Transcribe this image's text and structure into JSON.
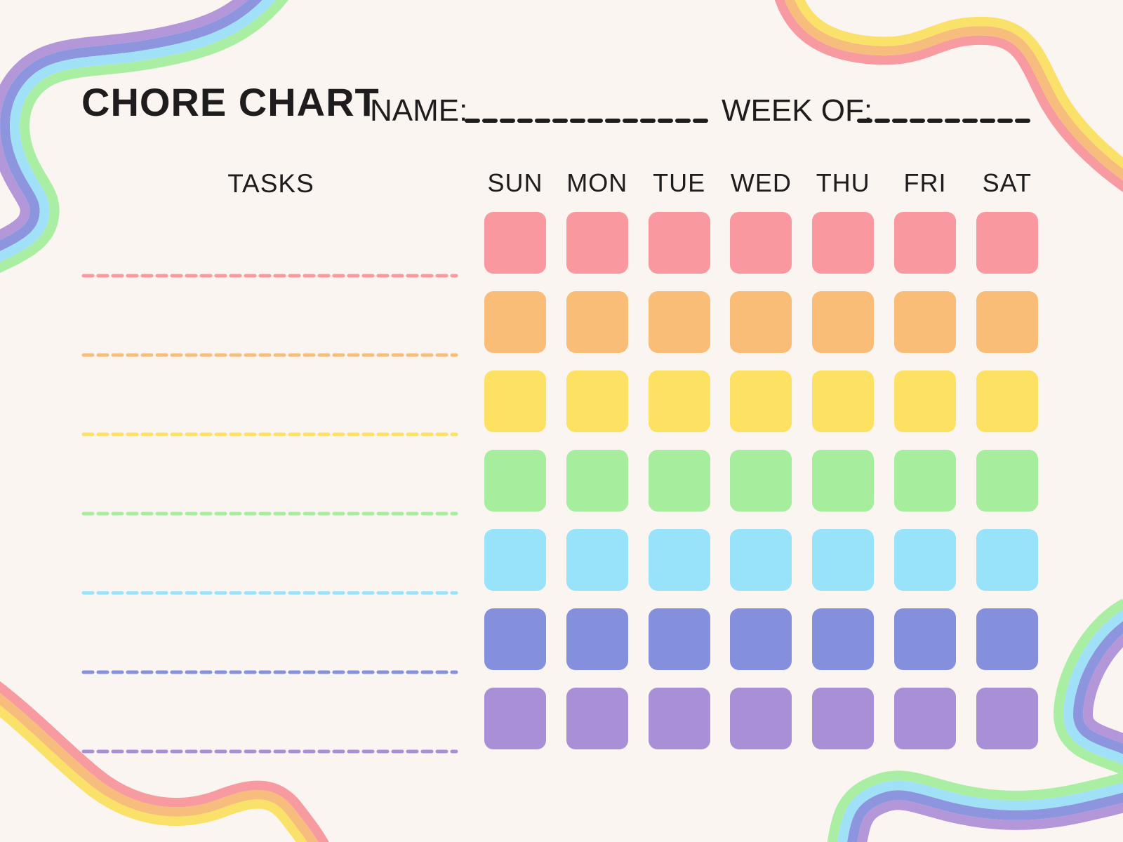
{
  "page": {
    "title": "CHORE CHART",
    "background_color": "#FBF5F2",
    "text_color": "#1E1C1C"
  },
  "header": {
    "name_label": "NAME:",
    "name_value": "",
    "week_label": "WEEK OF:",
    "week_value": ""
  },
  "table": {
    "tasks_header": "TASKS",
    "days": [
      "SUN",
      "MON",
      "TUE",
      "WED",
      "THU",
      "FRI",
      "SAT"
    ],
    "rows": [
      {
        "task": "",
        "color": "#F9989F"
      },
      {
        "task": "",
        "color": "#F9BD78"
      },
      {
        "task": "",
        "color": "#FDE163"
      },
      {
        "task": "",
        "color": "#A6EE9E"
      },
      {
        "task": "",
        "color": "#98E3FA"
      },
      {
        "task": "",
        "color": "#8590DC"
      },
      {
        "task": "",
        "color": "#A98FD5"
      }
    ]
  },
  "decor": {
    "cool_ribbon_colors": [
      "#B397D9",
      "#8C95DE",
      "#A1E1F8",
      "#AAEEA3"
    ],
    "warm_ribbon_colors": [
      "#F79BA1",
      "#F7BD7C",
      "#FAE169"
    ],
    "write_line_color": "#1E1C1C"
  }
}
